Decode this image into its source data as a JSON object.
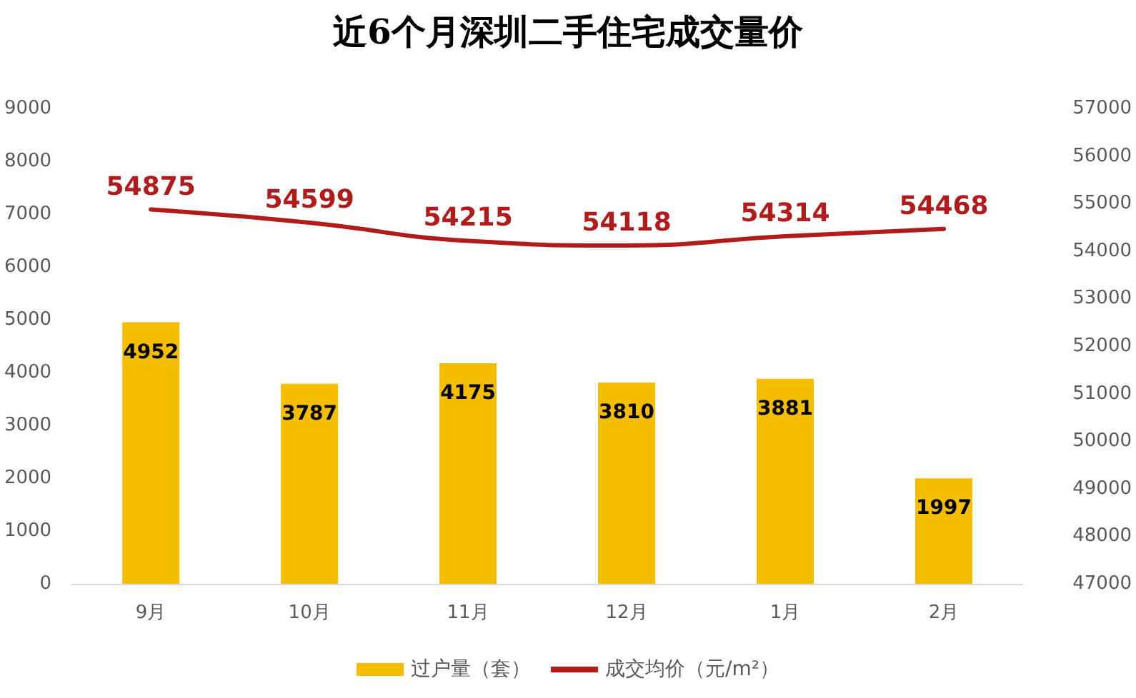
{
  "chart_data": {
    "type": "bar",
    "title": "近6个月深圳二手住宅成交量价",
    "categories": [
      "9月",
      "10月",
      "11月",
      "12月",
      "1月",
      "2月"
    ],
    "series": [
      {
        "name": "过户量（套）",
        "color": "#f5bd00",
        "values": [
          4952,
          3787,
          4175,
          3810,
          3881,
          1997
        ]
      },
      {
        "name": "成交均价（元/m²）",
        "type": "line",
        "axis": "y2",
        "color": "#b01c1c",
        "values": [
          54875,
          54599,
          54215,
          54118,
          54314,
          54468
        ]
      }
    ],
    "ylim": [
      0,
      9000
    ],
    "yticks": [
      0,
      1000,
      2000,
      3000,
      4000,
      5000,
      6000,
      7000,
      8000,
      9000
    ],
    "y2lim": [
      47000,
      57000
    ],
    "y2ticks": [
      47000,
      48000,
      49000,
      50000,
      51000,
      52000,
      53000,
      54000,
      55000,
      56000,
      57000
    ],
    "data_labels": true,
    "legend": "bottom",
    "grid": false,
    "marker": "none",
    "line_style": "solid"
  }
}
